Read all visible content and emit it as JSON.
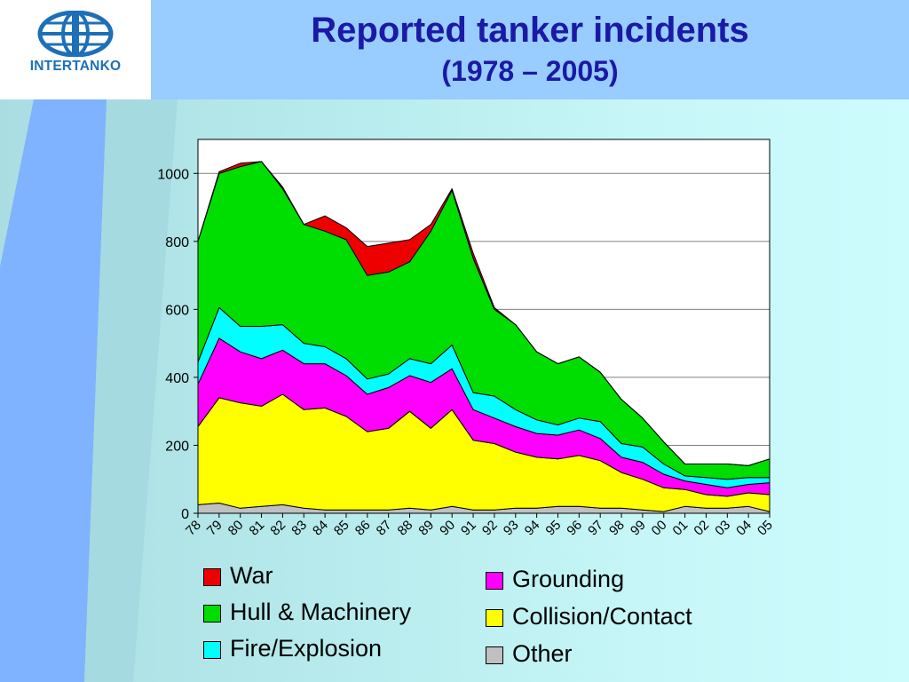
{
  "header": {
    "title": "Reported tanker incidents",
    "subtitle": "(1978 – 2005)",
    "logo_text": "INTERTANKO"
  },
  "chart_data": {
    "type": "area",
    "stacked": true,
    "x": [
      "78",
      "79",
      "80",
      "81",
      "82",
      "83",
      "84",
      "85",
      "86",
      "87",
      "88",
      "89",
      "90",
      "91",
      "92",
      "93",
      "94",
      "95",
      "96",
      "97",
      "98",
      "99",
      "00",
      "01",
      "02",
      "03",
      "04",
      "05"
    ],
    "ylim": [
      0,
      1100
    ],
    "yticks": [
      0,
      200,
      400,
      600,
      800,
      1000
    ],
    "grid": true,
    "series": [
      {
        "name": "Other",
        "color": "#c0c0c0",
        "values": [
          25,
          30,
          15,
          20,
          25,
          15,
          10,
          10,
          10,
          10,
          15,
          10,
          20,
          10,
          10,
          15,
          15,
          20,
          20,
          15,
          15,
          10,
          5,
          20,
          15,
          15,
          20,
          5
        ]
      },
      {
        "name": "Collision/Contact",
        "color": "#ffff00",
        "values": [
          230,
          310,
          310,
          295,
          325,
          290,
          300,
          275,
          230,
          240,
          285,
          240,
          285,
          205,
          195,
          165,
          150,
          140,
          150,
          140,
          105,
          90,
          70,
          50,
          40,
          35,
          40,
          50
        ]
      },
      {
        "name": "Grounding",
        "color": "#ff00ff",
        "values": [
          125,
          175,
          150,
          140,
          130,
          135,
          130,
          120,
          110,
          120,
          105,
          135,
          120,
          90,
          75,
          75,
          70,
          70,
          75,
          65,
          45,
          50,
          40,
          25,
          30,
          25,
          25,
          35
        ]
      },
      {
        "name": "Fire/Explosion",
        "color": "#00ffff",
        "values": [
          65,
          90,
          75,
          95,
          75,
          60,
          50,
          50,
          45,
          40,
          50,
          55,
          70,
          50,
          65,
          50,
          40,
          30,
          35,
          50,
          40,
          45,
          30,
          15,
          20,
          25,
          20,
          15
        ]
      },
      {
        "name": "Hull & Machinery",
        "color": "#00dd00",
        "values": [
          355,
          395,
          470,
          485,
          400,
          350,
          340,
          350,
          305,
          300,
          285,
          390,
          455,
          395,
          255,
          250,
          200,
          180,
          180,
          145,
          130,
          85,
          65,
          35,
          40,
          45,
          35,
          55
        ]
      },
      {
        "name": "War",
        "color": "#ee0000",
        "values": [
          0,
          5,
          10,
          0,
          5,
          0,
          45,
          35,
          85,
          85,
          65,
          20,
          5,
          15,
          5,
          0,
          0,
          0,
          0,
          0,
          0,
          0,
          0,
          0,
          0,
          0,
          0,
          0
        ]
      }
    ]
  },
  "legend": {
    "left": [
      {
        "label": "War",
        "color": "#ee0000"
      },
      {
        "label": "Hull & Machinery",
        "color": "#00dd00"
      },
      {
        "label": "Fire/Explosion",
        "color": "#00ffff"
      }
    ],
    "right": [
      {
        "label": "Grounding",
        "color": "#ff00ff"
      },
      {
        "label": "Collision/Contact",
        "color": "#ffff00"
      },
      {
        "label": "Other",
        "color": "#c0c0c0"
      }
    ]
  }
}
